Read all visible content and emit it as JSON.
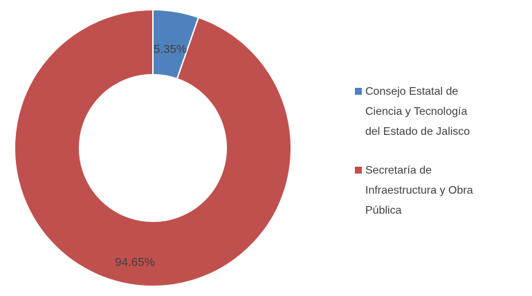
{
  "chart_data": {
    "type": "donut",
    "categories": [
      "Consejo Estatal de Ciencia y Tecnología del Estado de Jalisco",
      "Secretaría de Infraestructura y Obra Pública"
    ],
    "values": [
      5.35,
      94.65
    ],
    "value_labels": [
      "5.35%",
      "94.65%"
    ],
    "colors": [
      "#4f81bd",
      "#c0504d"
    ],
    "legend": "right"
  }
}
